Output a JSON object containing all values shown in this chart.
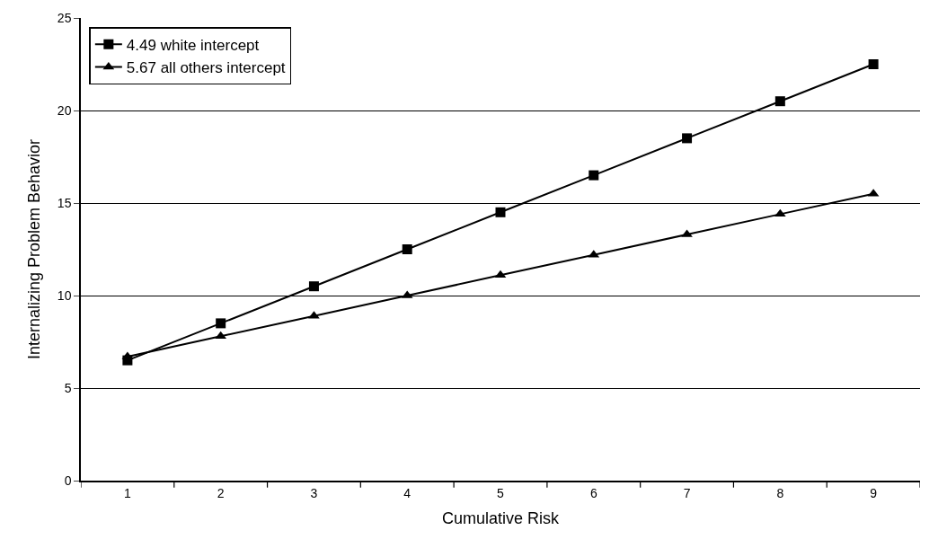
{
  "chart_data": {
    "type": "line",
    "xlabel": "Cumulative Risk",
    "ylabel": "Internalizing Problem Behavior",
    "categories": [
      "1",
      "2",
      "3",
      "4",
      "5",
      "6",
      "7",
      "8",
      "9"
    ],
    "series": [
      {
        "name": "4.49 white intercept",
        "color": "#000000",
        "marker": "square",
        "values": [
          6.5,
          8.5,
          10.5,
          12.5,
          14.5,
          16.5,
          18.5,
          20.5,
          22.5
        ]
      },
      {
        "name": "5.67 all others intercept",
        "color": "#000000",
        "marker": "triangle",
        "values": [
          6.7,
          7.8,
          8.9,
          10.0,
          11.1,
          12.2,
          13.3,
          14.4,
          15.5
        ]
      }
    ],
    "ylim": [
      0,
      25
    ],
    "yticks": [
      0,
      5,
      10,
      15,
      20,
      25
    ],
    "grid": "y",
    "legend": "top left",
    "line_style": "solid"
  }
}
